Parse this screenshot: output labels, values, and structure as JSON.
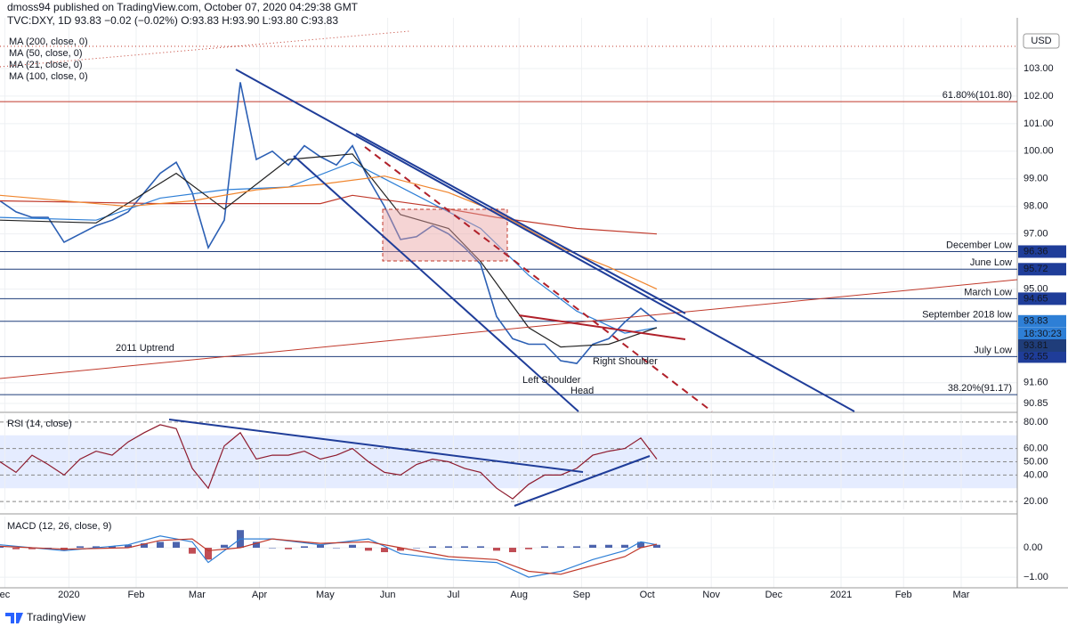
{
  "header": {
    "author_line": "dmoss94 published on TradingView.com, October 07, 2020 04:29:38 GMT",
    "symbol_line": "TVC:DXY, 1D 93.83 −0.02 (−0.02%) O:93.83 H:93.90 L:93.80 C:93.83",
    "currency": "USD"
  },
  "footer": {
    "logo": "TradingView"
  },
  "chart_data": [
    {
      "type": "line",
      "xlim": [
        0,
        63.5
      ],
      "ylim": [
        90.56,
        104.84
      ],
      "yticks": [
        {
          "value": 103,
          "label": "103.00"
        },
        {
          "value": 102,
          "label": "102.00"
        },
        {
          "value": 101,
          "label": "101.00"
        },
        {
          "value": 100,
          "label": "100.00"
        },
        {
          "value": 99,
          "label": "99.00"
        },
        {
          "value": 98,
          "label": "98.00"
        },
        {
          "value": 97,
          "label": "97.00"
        },
        {
          "value": 95,
          "label": "95.00"
        },
        {
          "value": 91.6,
          "label": "91.60"
        },
        90.85
      ],
      "grid": true,
      "series": [
        {
          "name": "DXY",
          "color": "#2b5fb4",
          "x": [
            0,
            1,
            2,
            3,
            4,
            5,
            6,
            7,
            8,
            9,
            10,
            11,
            12,
            13,
            14,
            15,
            16,
            17,
            18,
            19,
            20,
            21,
            22,
            23,
            24,
            25,
            26,
            27,
            28,
            29,
            30,
            31,
            32,
            33,
            34,
            35,
            36,
            37,
            38,
            39,
            40,
            41
          ],
          "values": [
            98.2,
            97.8,
            97.6,
            97.6,
            96.7,
            97.0,
            97.3,
            97.5,
            97.8,
            98.5,
            99.2,
            99.6,
            98.5,
            96.5,
            97.5,
            102.5,
            99.7,
            100.0,
            99.5,
            100.2,
            99.8,
            99.5,
            100.2,
            99.0,
            98.0,
            96.8,
            96.9,
            97.3,
            97.0,
            96.5,
            95.9,
            94.0,
            93.2,
            93.0,
            93.0,
            92.4,
            92.3,
            93.0,
            93.2,
            93.8,
            94.3,
            93.83
          ]
        },
        {
          "name": "MA (200, close, 0)",
          "color": "#c0392b",
          "x": [
            0,
            10,
            20,
            22,
            27,
            31,
            36,
            41
          ],
          "values": [
            98.2,
            98.1,
            98.1,
            98.4,
            98.0,
            97.6,
            97.2,
            97.0
          ]
        },
        {
          "name": "MA (50, close, 0)",
          "color": "#2e7fd6",
          "x": [
            0,
            6,
            10,
            14,
            18,
            22,
            26,
            30,
            33,
            36,
            39,
            41
          ],
          "values": [
            97.6,
            97.5,
            98.3,
            98.6,
            98.7,
            99.6,
            98.4,
            97.2,
            95.5,
            94.2,
            93.4,
            93.6
          ]
        },
        {
          "name": "MA (21, close, 0)",
          "color": "#222222",
          "x": [
            0,
            6,
            11,
            14,
            18,
            22,
            25,
            28,
            30,
            33,
            35,
            38,
            41
          ],
          "values": [
            97.5,
            97.4,
            99.2,
            97.9,
            99.7,
            99.9,
            97.7,
            97.2,
            96.0,
            93.6,
            92.9,
            93.0,
            93.6
          ]
        },
        {
          "name": "MA (100, close, 0)",
          "color": "#f0852d",
          "x": [
            0,
            8,
            12,
            16,
            20,
            24,
            28,
            31,
            35,
            38,
            41
          ],
          "values": [
            98.4,
            98.0,
            98.2,
            98.6,
            98.8,
            99.1,
            98.5,
            97.8,
            96.5,
            95.8,
            95.0
          ]
        }
      ],
      "levels": [
        {
          "label": "61.80%(101.80)",
          "value": 101.8,
          "color": "#c0392b"
        },
        {
          "label": "December Low",
          "value": 96.36,
          "color": "#1f3d7a"
        },
        {
          "label": "June Low",
          "value": 95.72,
          "color": "#1f3d7a"
        },
        {
          "label": "March Low",
          "value": 94.65,
          "color": "#1f3d7a"
        },
        {
          "label": "September 2018 low",
          "value": 93.83,
          "color": "#1f3d7a"
        },
        {
          "label": "July Low",
          "value": 92.55,
          "color": "#1f3d7a"
        },
        {
          "label": "38.20%(91.17)",
          "value": 91.17,
          "color": "#1f3d7a"
        }
      ],
      "price_tags": [
        {
          "label": "18:30:23"
        },
        {
          "value": 93.81
        }
      ],
      "annotations": [
        "2011 Uptrend",
        "Left Shoulder",
        "Head",
        "Right Shoulder"
      ]
    },
    {
      "type": "line",
      "title": "RSI (14, close)",
      "xlim": [
        0,
        63.5
      ],
      "ylim": [
        14,
        86
      ],
      "yticks": [
        {
          "value": 80,
          "label": "80.00"
        },
        {
          "value": 60,
          "label": "60.00"
        },
        {
          "value": 50,
          "label": "50.00"
        },
        {
          "value": 40,
          "label": "40.00"
        },
        {
          "value": 20,
          "label": "20.00"
        }
      ],
      "band": [
        30,
        70
      ],
      "series": [
        {
          "name": "RSI",
          "color": "#8e1b2e",
          "x": [
            0,
            1,
            2,
            3,
            4,
            5,
            6,
            7,
            8,
            9,
            10,
            11,
            12,
            13,
            14,
            15,
            16,
            17,
            18,
            19,
            20,
            21,
            22,
            23,
            24,
            25,
            26,
            27,
            28,
            29,
            30,
            31,
            32,
            33,
            34,
            35,
            36,
            37,
            38,
            39,
            40,
            41
          ],
          "values": [
            50,
            42,
            55,
            48,
            40,
            52,
            58,
            55,
            65,
            72,
            78,
            75,
            45,
            30,
            62,
            72,
            52,
            55,
            55,
            58,
            52,
            55,
            60,
            50,
            42,
            40,
            48,
            52,
            50,
            45,
            42,
            30,
            22,
            33,
            40,
            40,
            45,
            55,
            58,
            60,
            68,
            52
          ]
        }
      ]
    },
    {
      "type": "line",
      "title": "MACD (12, 26, close, 9)",
      "xlim": [
        0,
        63.5
      ],
      "ylim": [
        -1.36,
        1.06
      ],
      "yticks": [
        {
          "value": 0,
          "label": "0.00"
        },
        {
          "value": -1,
          "label": "−1.00"
        }
      ],
      "xticks": [
        {
          "value": 0.3,
          "label": "ec"
        },
        {
          "value": 4.3,
          "label": "2020"
        },
        {
          "value": 8.5,
          "label": "Feb"
        },
        {
          "value": 12.3,
          "label": "Mar"
        },
        {
          "value": 16.2,
          "label": "Apr"
        },
        {
          "value": 20.3,
          "label": "May"
        },
        {
          "value": 24.2,
          "label": "Jun"
        },
        {
          "value": 28.3,
          "label": "Jul"
        },
        {
          "value": 32.4,
          "label": "Aug"
        },
        {
          "value": 36.3,
          "label": "Sep"
        },
        {
          "value": 40.4,
          "label": "Oct"
        },
        {
          "value": 44.4,
          "label": "Nov"
        },
        {
          "value": 48.3,
          "label": "Dec"
        },
        {
          "value": 52.5,
          "label": "2021"
        },
        {
          "value": 56.4,
          "label": "Feb"
        },
        {
          "value": 60,
          "label": "Mar"
        }
      ],
      "series": [
        {
          "name": "Histogram",
          "style": "histogram",
          "color": "#1f3d99",
          "negative_color": "#b0202a",
          "x": [
            0,
            1,
            2,
            3,
            4,
            5,
            6,
            7,
            8,
            9,
            10,
            11,
            12,
            13,
            14,
            15,
            16,
            17,
            18,
            19,
            20,
            21,
            22,
            23,
            24,
            25,
            26,
            27,
            28,
            29,
            30,
            31,
            32,
            33,
            34,
            35,
            36,
            37,
            38,
            39,
            40,
            41
          ],
          "values": [
            0.05,
            -0.05,
            -0.05,
            0,
            -0.1,
            0.05,
            0.05,
            0.05,
            0.1,
            0.15,
            0.2,
            0.2,
            -0.2,
            -0.4,
            0.1,
            0.6,
            0.2,
            0,
            -0.05,
            0.05,
            0.1,
            0,
            0.1,
            -0.1,
            -0.15,
            -0.1,
            0,
            0.05,
            0.05,
            0.05,
            0.05,
            -0.1,
            -0.15,
            -0.05,
            0.05,
            0.05,
            0.05,
            0.1,
            0.1,
            0.1,
            0.2,
            0.1
          ]
        },
        {
          "name": "MACD",
          "color": "#2e7fd6",
          "x": [
            0,
            4,
            8,
            10,
            12,
            13,
            15,
            17,
            20,
            23,
            25,
            28,
            31,
            33,
            35,
            37,
            39,
            40,
            41
          ],
          "values": [
            0.1,
            -0.1,
            0.1,
            0.4,
            0.2,
            -0.5,
            0.3,
            0.3,
            0.1,
            0.3,
            -0.2,
            -0.4,
            -0.5,
            -1.0,
            -0.8,
            -0.4,
            -0.1,
            0.2,
            0.1
          ]
        },
        {
          "name": "Signal",
          "color": "#c0392b",
          "x": [
            0,
            4,
            8,
            10,
            12,
            13,
            15,
            17,
            20,
            23,
            25,
            28,
            31,
            33,
            35,
            37,
            39,
            40,
            41
          ],
          "values": [
            0.05,
            -0.05,
            0.0,
            0.25,
            0.3,
            -0.1,
            0.0,
            0.3,
            0.15,
            0.2,
            0.0,
            -0.3,
            -0.4,
            -0.8,
            -0.9,
            -0.6,
            -0.3,
            0.0,
            0.12
          ]
        }
      ]
    }
  ]
}
